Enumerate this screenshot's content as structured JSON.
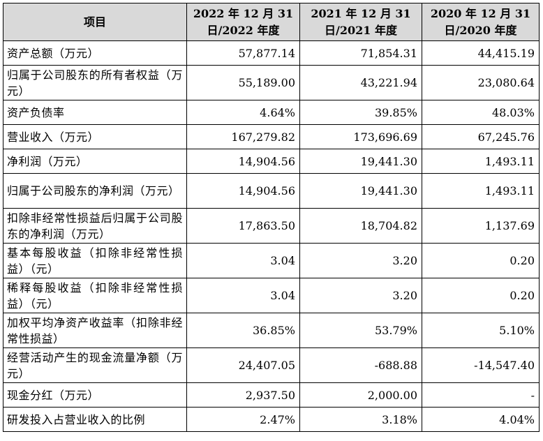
{
  "table": {
    "headers": [
      "项目",
      "2022 年 12 月 31 日/2022 年度",
      "2021 年 12 月 31 日/2021 年度",
      "2020 年 12 月 31 日/2020 年度"
    ],
    "rows": [
      {
        "label": "资产总额（万元）",
        "values": [
          "57,877.14",
          "71,854.31",
          "44,415.19"
        ]
      },
      {
        "label": "归属于公司股东的所有者权益（万元）",
        "values": [
          "55,189.00",
          "43,221.94",
          "23,080.64"
        ]
      },
      {
        "label": "资产负债率",
        "values": [
          "4.64%",
          "39.85%",
          "48.03%"
        ]
      },
      {
        "label": "营业收入（万元）",
        "values": [
          "167,279.82",
          "173,696.69",
          "67,245.76"
        ]
      },
      {
        "label": "净利润（万元）",
        "values": [
          "14,904.56",
          "19,441.30",
          "1,493.11"
        ]
      },
      {
        "label": "归属于公司股东的净利润（万元）",
        "values": [
          "14,904.56",
          "19,441.30",
          "1,493.11"
        ]
      },
      {
        "label": "扣除非经常性损益后归属于公司股东的净利润（万元）",
        "values": [
          "17,863.50",
          "18,704.82",
          "1,137.69"
        ]
      },
      {
        "label": "基本每股收益（扣除非经常性损益）（元）",
        "values": [
          "3.04",
          "3.20",
          "0.20"
        ]
      },
      {
        "label": "稀释每股收益（扣除非经常性损益）（元）",
        "values": [
          "3.04",
          "3.20",
          "0.20"
        ]
      },
      {
        "label": "加权平均净资产收益率（扣除非经常性损益）",
        "values": [
          "36.85%",
          "53.79%",
          "5.10%"
        ]
      },
      {
        "label": "经营活动产生的现金流量净额（万元）",
        "values": [
          "24,407.05",
          "-688.88",
          "-14,547.40"
        ]
      },
      {
        "label": "现金分红（万元）",
        "values": [
          "2,937.50",
          "2,000.00",
          "-"
        ]
      },
      {
        "label": "研发投入占营业收入的比例",
        "values": [
          "2.47%",
          "3.18%",
          "4.04%"
        ]
      }
    ]
  },
  "colors": {
    "header_bg": "#d9d9d9",
    "border": "#000000",
    "text": "#000000"
  }
}
